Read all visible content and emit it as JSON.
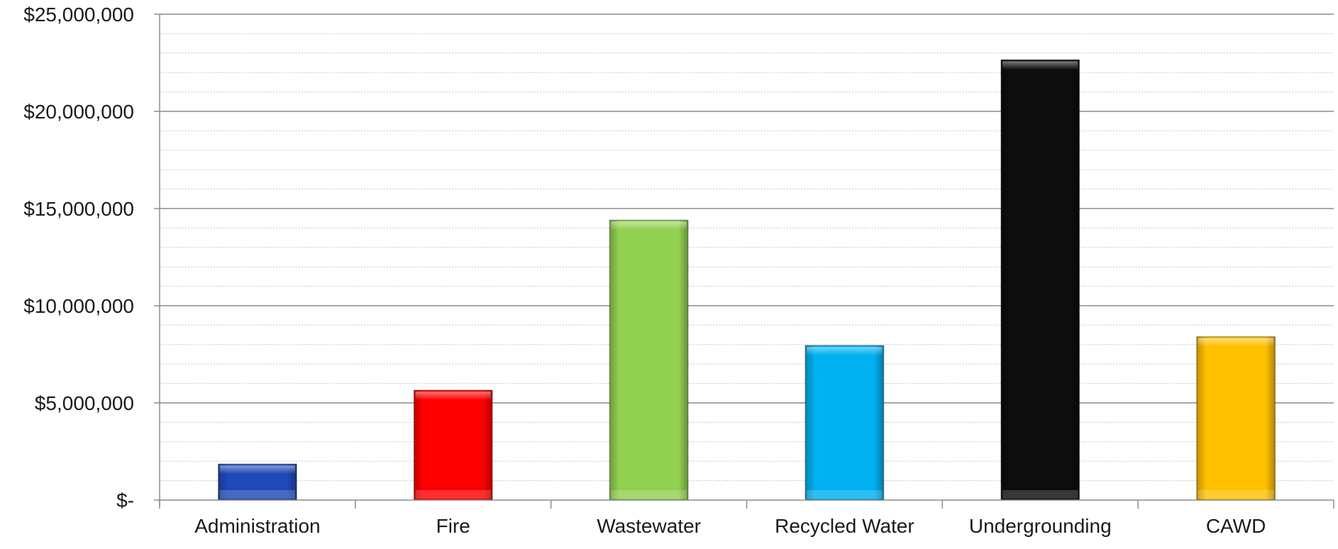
{
  "chart_data": {
    "type": "bar",
    "title": "",
    "xlabel": "",
    "ylabel": "",
    "categories": [
      "Administration",
      "Fire",
      "Wastewater",
      "Recycled Water",
      "Undergrounding",
      "CAWD"
    ],
    "values": [
      1850000,
      5650000,
      14400000,
      7950000,
      22650000,
      8400000
    ],
    "colors": [
      "#1f49b8",
      "#ff0000",
      "#92d050",
      "#00b0f0",
      "#0d0d0d",
      "#ffc000"
    ],
    "ylim": [
      0,
      25000000
    ],
    "yticks": [
      0,
      5000000,
      10000000,
      15000000,
      20000000,
      25000000
    ],
    "ytick_labels": [
      "$-",
      "$5,000,000",
      "$10,000,000",
      "$15,000,000",
      "$20,000,000",
      "$25,000,000"
    ],
    "grid": "major solid, minor dotted",
    "legend": "none"
  }
}
